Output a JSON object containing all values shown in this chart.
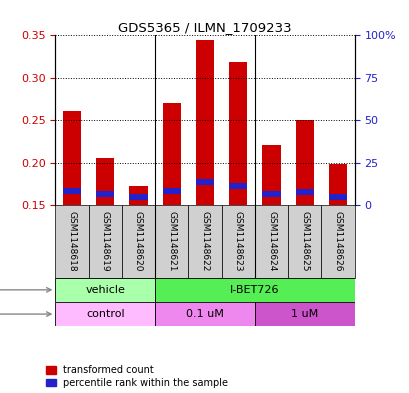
{
  "title": "GDS5365 / ILMN_1709233",
  "samples": [
    "GSM1148618",
    "GSM1148619",
    "GSM1148620",
    "GSM1148621",
    "GSM1148622",
    "GSM1148623",
    "GSM1148624",
    "GSM1148625",
    "GSM1148626"
  ],
  "transformed_count": [
    0.261,
    0.206,
    0.172,
    0.27,
    0.344,
    0.319,
    0.221,
    0.25,
    0.198
  ],
  "percentile_rank": [
    0.167,
    0.163,
    0.159,
    0.167,
    0.177,
    0.172,
    0.163,
    0.165,
    0.16
  ],
  "base_value": 0.15,
  "ylim_left": [
    0.15,
    0.35
  ],
  "ylim_right": [
    0,
    100
  ],
  "yticks_left": [
    0.15,
    0.2,
    0.25,
    0.3,
    0.35
  ],
  "yticks_right": [
    0,
    25,
    50,
    75,
    100
  ],
  "bar_color_red": "#cc0000",
  "bar_color_blue": "#2222cc",
  "bar_width": 0.55,
  "agent_labels": [
    "vehicle",
    "I-BET726"
  ],
  "agent_colors": [
    "#aaffaa",
    "#55ee55"
  ],
  "dose_labels": [
    "control",
    "0.1 uM",
    "1 uM"
  ],
  "dose_colors": [
    "#ffbbff",
    "#ee88ee",
    "#cc55cc"
  ],
  "label_bg": "#d0d0d0",
  "legend_red": "transformed count",
  "legend_blue": "percentile rank within the sample",
  "sep_color": "#888888",
  "group_sep_color": "black"
}
